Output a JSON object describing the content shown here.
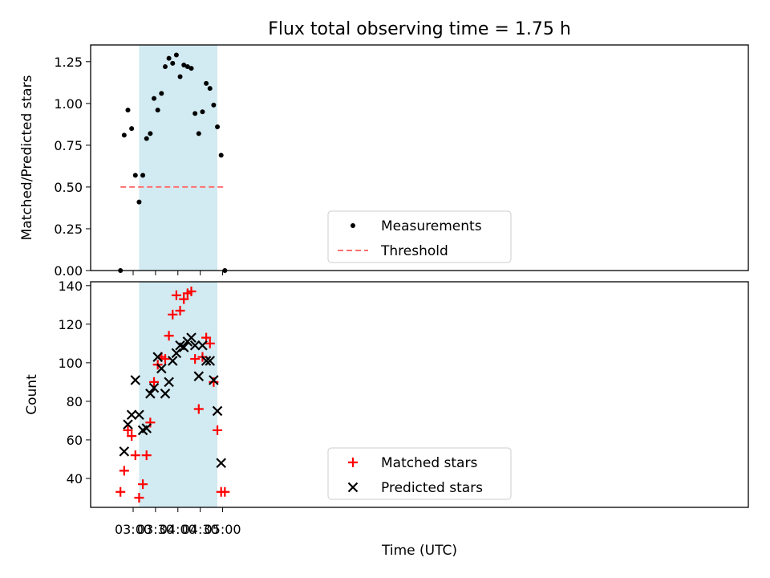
{
  "figure": {
    "title": "Flux total observing time = 1.75 h",
    "xlabel": "Time (UTC)",
    "xticks": [
      "03:00",
      "03:30",
      "04:00",
      "04:30",
      "05:00"
    ],
    "shaded_interval": [
      "03:08",
      "04:53"
    ],
    "shade_color": "#add8e6"
  },
  "chart_data": [
    {
      "type": "scatter",
      "ylabel": "Matched/Predicted stars",
      "ylim": [
        0,
        1.35
      ],
      "yticks": [
        "0.00",
        "0.25",
        "0.50",
        "0.75",
        "1.00",
        "1.25"
      ],
      "legend_position": "lower center",
      "series": [
        {
          "name": "Measurements",
          "marker": "dot",
          "color": "#000000",
          "points": [
            [
              "02:43",
              0.0
            ],
            [
              "02:48",
              0.81
            ],
            [
              "02:53",
              0.96
            ],
            [
              "02:58",
              0.85
            ],
            [
              "03:03",
              0.57
            ],
            [
              "03:08",
              0.41
            ],
            [
              "03:13",
              0.57
            ],
            [
              "03:18",
              0.79
            ],
            [
              "03:23",
              0.82
            ],
            [
              "03:28",
              1.03
            ],
            [
              "03:33",
              0.96
            ],
            [
              "03:38",
              1.06
            ],
            [
              "03:43",
              1.22
            ],
            [
              "03:48",
              1.27
            ],
            [
              "03:53",
              1.24
            ],
            [
              "03:58",
              1.29
            ],
            [
              "04:03",
              1.16
            ],
            [
              "04:08",
              1.23
            ],
            [
              "04:13",
              1.22
            ],
            [
              "04:18",
              1.21
            ],
            [
              "04:23",
              0.94
            ],
            [
              "04:28",
              0.82
            ],
            [
              "04:33",
              0.95
            ],
            [
              "04:38",
              1.12
            ],
            [
              "04:43",
              1.09
            ],
            [
              "04:48",
              0.99
            ],
            [
              "04:53",
              0.86
            ],
            [
              "04:58",
              0.69
            ],
            [
              "05:03",
              0.0
            ]
          ]
        },
        {
          "name": "Threshold",
          "type": "line",
          "style": "dashed",
          "color": "#ff7070",
          "points": [
            [
              "02:43",
              0.5
            ],
            [
              "05:03",
              0.5
            ]
          ]
        }
      ]
    },
    {
      "type": "scatter",
      "ylabel": "Count",
      "ylim": [
        25,
        142
      ],
      "yticks": [
        "40",
        "60",
        "80",
        "100",
        "120",
        "140"
      ],
      "legend_position": "lower center",
      "x": [
        "02:43",
        "02:48",
        "02:53",
        "02:58",
        "03:03",
        "03:08",
        "03:13",
        "03:18",
        "03:23",
        "03:28",
        "03:33",
        "03:38",
        "03:43",
        "03:48",
        "03:53",
        "03:58",
        "04:03",
        "04:08",
        "04:13",
        "04:18",
        "04:23",
        "04:28",
        "04:33",
        "04:38",
        "04:43",
        "04:48",
        "04:53",
        "04:58",
        "05:03"
      ],
      "series": [
        {
          "name": "Matched stars",
          "marker": "plus",
          "color": "#ff0000",
          "values": [
            33,
            44,
            65,
            62,
            52,
            30,
            37,
            52,
            69,
            90,
            99,
            103,
            102,
            114,
            125,
            135,
            127,
            133,
            136,
            137,
            102,
            76,
            103,
            113,
            110,
            90,
            65,
            33,
            33
          ]
        },
        {
          "name": "Predicted stars",
          "marker": "x",
          "color": "#000000",
          "values": [
            null,
            54,
            68,
            73,
            91,
            73,
            65,
            66,
            84,
            87,
            103,
            97,
            84,
            90,
            101,
            105,
            109,
            108,
            111,
            113,
            109,
            93,
            109,
            101,
            101,
            91,
            75,
            48,
            null
          ]
        }
      ]
    }
  ]
}
